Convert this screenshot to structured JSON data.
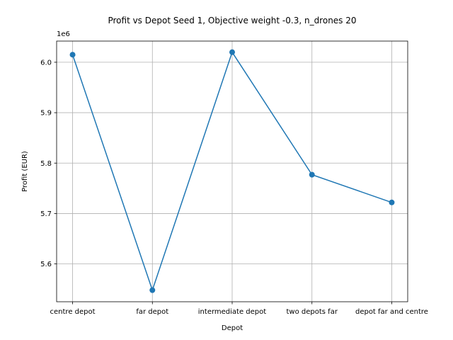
{
  "chart_data": {
    "type": "line",
    "title": "Profit vs Depot Seed 1, Objective weight  -0.3, n_drones 20",
    "xlabel": "Depot",
    "ylabel": "Profit (EUR)",
    "y_offset_label": "1e6",
    "categories": [
      "centre depot",
      "far depot",
      "intermediate depot",
      "two depots far",
      "depot far and centre"
    ],
    "series": [
      {
        "values": [
          6015000,
          5548000,
          6020000,
          5777000,
          5722000
        ],
        "color": "#1f77b4",
        "marker": "circle"
      }
    ],
    "ylim": [
      5525000,
      6042000
    ],
    "yticks": [
      5600000,
      5700000,
      5800000,
      5900000,
      6000000
    ],
    "ytick_labels": [
      "5.6",
      "5.7",
      "5.8",
      "5.9",
      "6.0"
    ],
    "grid": true
  }
}
